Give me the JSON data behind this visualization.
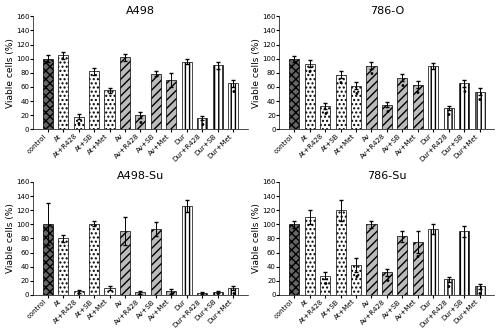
{
  "subplots": [
    {
      "title": "A498",
      "ylabel": "Viable cells (%)",
      "ylim": [
        0,
        160
      ],
      "yticks": [
        0,
        20,
        40,
        60,
        80,
        100,
        120,
        140,
        160
      ],
      "categories": [
        "control",
        "At",
        "At+R428",
        "At+SB",
        "At+Met",
        "Av",
        "Av+R428",
        "Av+SB",
        "Av+Met",
        "Dur",
        "Dur+R428",
        "Dur+SB",
        "Dur+Met"
      ],
      "values": [
        100,
        105,
        18,
        82,
        55,
        102,
        20,
        79,
        70,
        96,
        16,
        91,
        65
      ],
      "errors": [
        5,
        5,
        4,
        5,
        4,
        5,
        4,
        4,
        10,
        3,
        3,
        5,
        5
      ],
      "stars": [
        false,
        false,
        true,
        false,
        false,
        false,
        true,
        false,
        false,
        false,
        true,
        false,
        true
      ]
    },
    {
      "title": "786-O",
      "ylabel": "Viable cells (%)",
      "ylim": [
        0,
        160
      ],
      "yticks": [
        0,
        20,
        40,
        60,
        80,
        100,
        120,
        140,
        160
      ],
      "categories": [
        "control",
        "At",
        "At+R428",
        "At+SB",
        "At+Met",
        "Av",
        "Av+R428",
        "Av+SB",
        "Av+Met",
        "Dur",
        "Dur+R428",
        "Dur+SB",
        "Dur+Met"
      ],
      "values": [
        100,
        93,
        33,
        77,
        62,
        90,
        35,
        73,
        63,
        90,
        30,
        65,
        53
      ],
      "errors": [
        4,
        5,
        4,
        5,
        5,
        5,
        4,
        5,
        5,
        4,
        3,
        5,
        5
      ],
      "stars": [
        false,
        true,
        true,
        true,
        true,
        true,
        true,
        true,
        true,
        false,
        true,
        true,
        true
      ]
    },
    {
      "title": "A498-Su",
      "ylabel": "Viable cells (%)",
      "ylim": [
        0,
        160
      ],
      "yticks": [
        0,
        20,
        40,
        60,
        80,
        100,
        120,
        140,
        160
      ],
      "categories": [
        "control",
        "At",
        "At+R428",
        "At+SB",
        "At+Met",
        "Av",
        "Av+R428",
        "Av+SB",
        "Av+Met",
        "Dur",
        "Dur+R428",
        "Dur+SB",
        "Dur+Met"
      ],
      "values": [
        100,
        80,
        5,
        101,
        10,
        90,
        4,
        93,
        5,
        126,
        3,
        4,
        10
      ],
      "errors": [
        30,
        5,
        2,
        3,
        3,
        20,
        2,
        10,
        3,
        8,
        1,
        1,
        3
      ],
      "stars": [
        false,
        false,
        true,
        false,
        false,
        false,
        false,
        false,
        true,
        false,
        true,
        true,
        true
      ]
    },
    {
      "title": "786-Su",
      "ylabel": "Viable cells (%)",
      "ylim": [
        0,
        160
      ],
      "yticks": [
        0,
        20,
        40,
        60,
        80,
        100,
        120,
        140,
        160
      ],
      "categories": [
        "control",
        "At",
        "At+R428",
        "At+SB",
        "At+Met",
        "Av",
        "Av+R428",
        "Av+SB",
        "Av+Met",
        "Dur",
        "Dur+R428",
        "Dur+SB",
        "Dur+Met"
      ],
      "values": [
        100,
        110,
        27,
        120,
        42,
        100,
        32,
        83,
        75,
        93,
        22,
        90,
        12
      ],
      "errors": [
        5,
        10,
        5,
        15,
        10,
        5,
        5,
        8,
        15,
        7,
        4,
        8,
        3
      ],
      "stars": [
        false,
        false,
        true,
        false,
        true,
        false,
        true,
        false,
        true,
        false,
        true,
        false,
        true
      ]
    }
  ],
  "bar_width": 0.65,
  "star_fontsize": 7,
  "tick_fontsize": 5.0,
  "title_fontsize": 8,
  "ylabel_fontsize": 6.5
}
